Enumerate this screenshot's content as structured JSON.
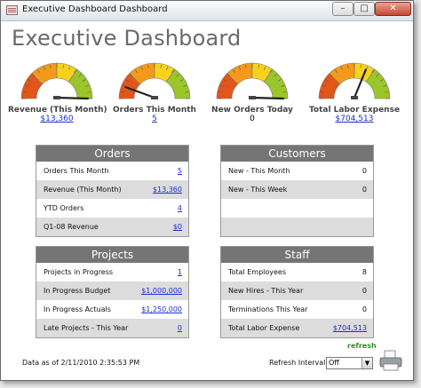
{
  "window": {
    "title": "Executive Dashboard Dashboard"
  },
  "page": {
    "title": "Executive Dashboard"
  },
  "gauges": [
    {
      "label": "Revenue (This Month)",
      "value": "$13,360",
      "link": true,
      "needle_fraction": 1.0
    },
    {
      "label": "Orders This Month",
      "value": "5",
      "link": true,
      "needle_fraction": 0.12
    },
    {
      "label": "New Orders Today",
      "value": "0",
      "link": false,
      "needle_fraction": 1.0
    },
    {
      "label": "Total Labor Expense",
      "value": "$704,513",
      "link": true,
      "needle_fraction": 0.62
    }
  ],
  "gauge_colors": {
    "red": "#e2561a",
    "orange": "#f39a1a",
    "yellow": "#f7d21c",
    "green": "#9bc62a"
  },
  "panels": {
    "orders": {
      "title": "Orders",
      "rows": [
        {
          "label": "Orders This Month",
          "value": "5",
          "link": true
        },
        {
          "label": "Revenue (This Month)",
          "value": "$13,360",
          "link": true
        },
        {
          "label": "YTD Orders",
          "value": "4",
          "link": true
        },
        {
          "label": "Q1-08 Revenue",
          "value": "$0",
          "link": true
        }
      ]
    },
    "customers": {
      "title": "Customers",
      "rows": [
        {
          "label": "New - This Month",
          "value": "0",
          "link": false
        },
        {
          "label": "New - This Week",
          "value": "0",
          "link": false
        },
        {
          "label": "",
          "value": "",
          "link": false
        },
        {
          "label": "",
          "value": "",
          "link": false
        }
      ]
    },
    "projects": {
      "title": "Projects",
      "rows": [
        {
          "label": "Projects in Progress",
          "value": "1",
          "link": true
        },
        {
          "label": "In Progress Budget",
          "value": "$1,000,000",
          "link": true
        },
        {
          "label": "In Progress Actuals",
          "value": "$1,250,000",
          "link": true
        },
        {
          "label": "Late Projects - This Year",
          "value": "0",
          "link": true
        }
      ]
    },
    "staff": {
      "title": "Staff",
      "rows": [
        {
          "label": "Total Employees",
          "value": "8",
          "link": false
        },
        {
          "label": "New Hires - This Year",
          "value": "0",
          "link": false
        },
        {
          "label": "Terminations This Year",
          "value": "0",
          "link": false
        },
        {
          "label": "Total Labor Expense",
          "value": "$704,513",
          "link": true
        }
      ]
    }
  },
  "footer": {
    "data_as_of": "Data as of 2/11/2010 2:35:53 PM",
    "refresh_interval_label": "Refresh Interval",
    "refresh_interval_value": "Off",
    "refresh_label": "refresh"
  },
  "icons": {
    "app": "app-icon",
    "printer": "printer-icon"
  }
}
